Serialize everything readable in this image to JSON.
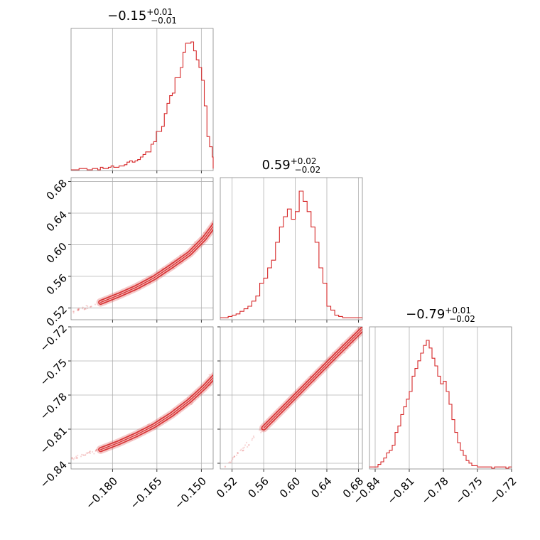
{
  "chart_data": {
    "type": "corner",
    "color": "#d62728",
    "grid": true,
    "parameters": [
      {
        "title_value": "−0.15",
        "title_plus": "+0.01",
        "title_minus": "−0.01",
        "range": [
          -0.194,
          -0.146
        ],
        "ticks": [
          -0.18,
          -0.165,
          -0.15
        ],
        "tick_labels": [
          "−0.180",
          "−0.165",
          "−0.150"
        ],
        "hist_bins": [
          -0.194,
          -0.1931,
          -0.1922,
          -0.1913,
          -0.1904,
          -0.1895,
          -0.1886,
          -0.1877,
          -0.1868,
          -0.1859,
          -0.185,
          -0.1841,
          -0.1832,
          -0.1823,
          -0.1814,
          -0.1805,
          -0.1796,
          -0.1787,
          -0.1778,
          -0.1769,
          -0.176,
          -0.1751,
          -0.1742,
          -0.1733,
          -0.1724,
          -0.1715,
          -0.1706,
          -0.1697,
          -0.1688,
          -0.1679,
          -0.167,
          -0.1661,
          -0.1652,
          -0.1643,
          -0.1634,
          -0.1625,
          -0.1616,
          -0.1607,
          -0.1598,
          -0.1589,
          -0.158,
          -0.1571,
          -0.1562,
          -0.1553,
          -0.1544,
          -0.1535,
          -0.1526,
          -0.1517,
          -0.1508,
          -0.1499,
          -0.149,
          -0.1481,
          -0.1472,
          -0.1463,
          -0.1454,
          -0.1445
        ],
        "hist_counts": [
          0,
          0,
          0,
          1,
          1,
          1,
          0,
          0,
          1,
          1,
          0,
          2,
          1,
          1,
          2,
          3,
          2,
          2,
          3,
          3,
          4,
          6,
          7,
          6,
          7,
          8,
          10,
          12,
          14,
          14,
          20,
          22,
          30,
          30,
          34,
          44,
          52,
          58,
          60,
          72,
          72,
          80,
          92,
          99,
          99,
          100,
          93,
          86,
          80,
          70,
          50,
          26,
          18,
          10,
          2,
          1
        ]
      },
      {
        "title_value": "0.59",
        "title_plus": "+0.02",
        "title_minus": "−0.02",
        "range": [
          0.505,
          0.685
        ],
        "ticks": [
          0.52,
          0.56,
          0.6,
          0.64,
          0.68
        ],
        "tick_labels": [
          "0.52",
          "0.56",
          "0.60",
          "0.64",
          "0.68"
        ],
        "hist_bins": [
          0.505,
          0.51,
          0.515,
          0.52,
          0.525,
          0.53,
          0.535,
          0.54,
          0.545,
          0.55,
          0.555,
          0.56,
          0.565,
          0.57,
          0.575,
          0.58,
          0.585,
          0.59,
          0.595,
          0.6,
          0.605,
          0.61,
          0.615,
          0.62,
          0.625,
          0.63,
          0.635,
          0.64,
          0.645,
          0.65,
          0.655,
          0.66,
          0.665,
          0.67,
          0.675,
          0.68
        ],
        "hist_counts": [
          1,
          1,
          2,
          3,
          4,
          6,
          8,
          10,
          14,
          18,
          28,
          32,
          40,
          46,
          60,
          72,
          80,
          86,
          78,
          84,
          100,
          92,
          84,
          72,
          60,
          40,
          28,
          10,
          7,
          3,
          2,
          1,
          1,
          1,
          1,
          1
        ]
      },
      {
        "title_value": "−0.79",
        "title_plus": "+0.01",
        "title_minus": "−0.02",
        "range": [
          -0.845,
          -0.72
        ],
        "ticks": [
          -0.84,
          -0.81,
          -0.78,
          -0.75,
          -0.72
        ],
        "tick_labels": [
          "−0.84",
          "−0.81",
          "−0.78",
          "−0.75",
          "−0.72"
        ],
        "hist_bins": [
          -0.845,
          -0.8425,
          -0.84,
          -0.8375,
          -0.835,
          -0.8325,
          -0.83,
          -0.8275,
          -0.825,
          -0.8225,
          -0.82,
          -0.8175,
          -0.815,
          -0.8125,
          -0.81,
          -0.8075,
          -0.805,
          -0.8025,
          -0.8,
          -0.7975,
          -0.795,
          -0.7925,
          -0.79,
          -0.7875,
          -0.785,
          -0.7825,
          -0.78,
          -0.7775,
          -0.775,
          -0.7725,
          -0.77,
          -0.7675,
          -0.765,
          -0.7625,
          -0.76,
          -0.7575,
          -0.755,
          -0.7525,
          -0.75,
          -0.7475,
          -0.745,
          -0.7425,
          -0.74,
          -0.7375,
          -0.735,
          -0.7325,
          -0.73,
          -0.7275,
          -0.725,
          -0.7225,
          -0.72
        ],
        "hist_counts": [
          1,
          1,
          1,
          3,
          5,
          8,
          12,
          14,
          18,
          28,
          33,
          42,
          48,
          54,
          60,
          72,
          78,
          84,
          90,
          96,
          100,
          94,
          86,
          80,
          72,
          66,
          68,
          60,
          50,
          38,
          28,
          20,
          14,
          10,
          6,
          4,
          2,
          2,
          1,
          1,
          1,
          1,
          1,
          0,
          1,
          1,
          1,
          1,
          0,
          1
        ]
      }
    ],
    "pairs": [
      {
        "x_param": 0,
        "y_param": 1,
        "y_ticks": [
          0.52,
          0.56,
          0.6,
          0.64,
          0.68
        ],
        "y_tick_labels": [
          "0.52",
          "0.56",
          "0.60",
          "0.64",
          "0.68"
        ],
        "trend": {
          "x": [
            -0.196,
            -0.19,
            -0.184,
            -0.178,
            -0.172,
            -0.166,
            -0.16,
            -0.154,
            -0.149,
            -0.145
          ],
          "y": [
            0.512,
            0.519,
            0.527,
            0.536,
            0.546,
            0.558,
            0.573,
            0.589,
            0.608,
            0.628
          ]
        }
      },
      {
        "x_param": 0,
        "y_param": 2,
        "y_ticks": [
          -0.84,
          -0.81,
          -0.78,
          -0.75,
          -0.72
        ],
        "y_tick_labels": [
          "−0.84",
          "−0.81",
          "−0.78",
          "−0.75",
          "−0.72"
        ],
        "trend": {
          "x": [
            -0.196,
            -0.19,
            -0.184,
            -0.178,
            -0.172,
            -0.166,
            -0.16,
            -0.154,
            -0.149,
            -0.145
          ],
          "y": [
            -0.838,
            -0.833,
            -0.828,
            -0.822,
            -0.815,
            -0.807,
            -0.797,
            -0.785,
            -0.773,
            -0.762
          ]
        }
      },
      {
        "x_param": 1,
        "y_param": 2,
        "y_ticks": [
          -0.84,
          -0.81,
          -0.78,
          -0.75,
          -0.72
        ],
        "y_tick_labels": [],
        "trend": {
          "x": [
            0.505,
            0.53,
            0.56,
            0.59,
            0.62,
            0.65,
            0.685
          ],
          "y": [
            -0.848,
            -0.83,
            -0.809,
            -0.788,
            -0.767,
            -0.746,
            -0.722
          ]
        }
      }
    ]
  }
}
